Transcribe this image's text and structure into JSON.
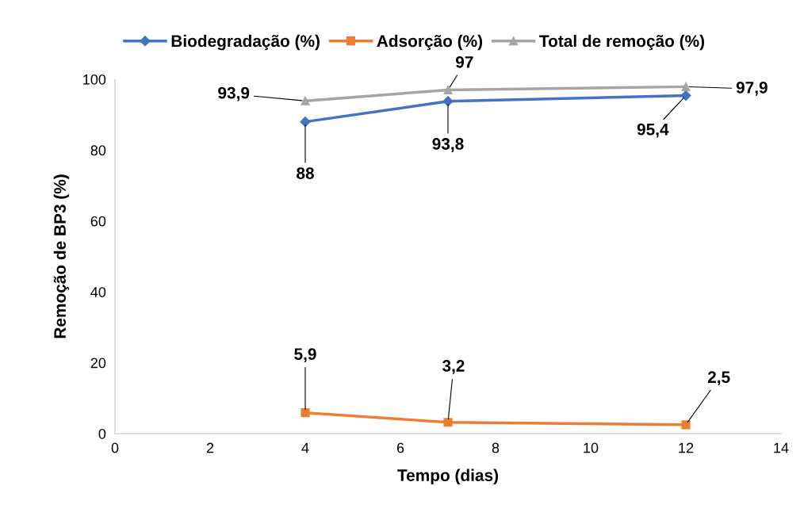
{
  "chart_data": {
    "type": "line",
    "xlabel": "Tempo (dias)",
    "ylabel": "Remoção de BP3 (%)",
    "x": [
      4,
      7,
      12
    ],
    "xlim": [
      0,
      14
    ],
    "xticks": [
      0,
      2,
      4,
      6,
      8,
      10,
      12,
      14
    ],
    "ylim": [
      0,
      100
    ],
    "yticks": [
      0,
      20,
      40,
      60,
      80,
      100
    ],
    "grid": false,
    "legend": "top",
    "series": [
      {
        "name": "Biodegradação (%)",
        "color": "#4472c4",
        "marker": "diamond",
        "values": [
          88,
          93.8,
          95.4
        ],
        "value_labels": [
          "88",
          "93,8",
          "95,4"
        ]
      },
      {
        "name": "Adsorção (%)",
        "color": "#ed7d31",
        "marker": "square",
        "values": [
          5.9,
          3.2,
          2.5
        ],
        "value_labels": [
          "5,9",
          "3,2",
          "2,5"
        ]
      },
      {
        "name": "Total de remoção (%)",
        "color": "#a5a5a5",
        "marker": "triangle",
        "values": [
          93.9,
          97,
          97.9
        ],
        "value_labels": [
          "93,9",
          "97",
          "97,9"
        ]
      }
    ]
  }
}
